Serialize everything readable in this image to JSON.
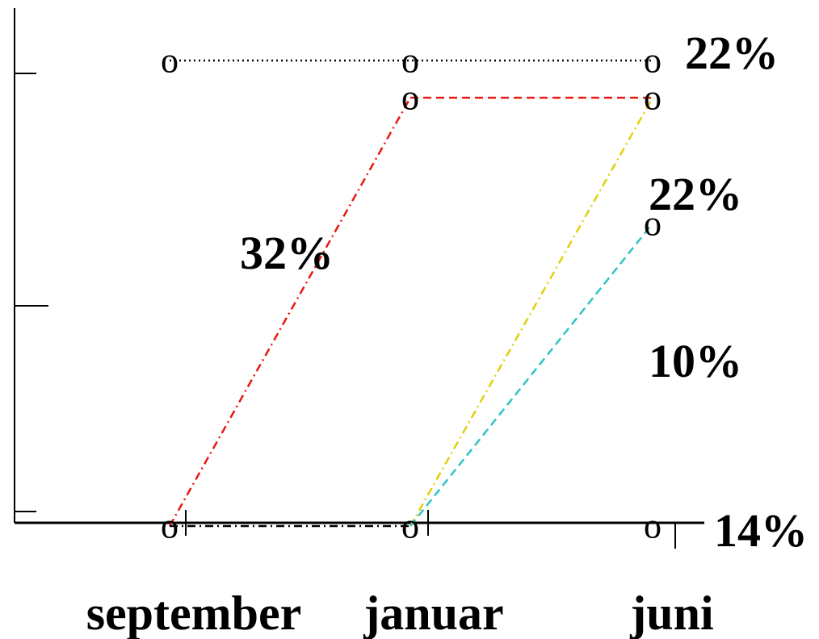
{
  "chart_data": {
    "type": "line",
    "categories": [
      "september",
      "januar",
      "juni"
    ],
    "series": [
      {
        "values": [
          1,
          1,
          1
        ],
        "style": "dotted",
        "color": "#000000"
      },
      {
        "values": [
          null,
          0.92,
          0.92
        ],
        "style": "dashed",
        "color": "#e8170f"
      },
      {
        "values": [
          0,
          0.92,
          null
        ],
        "style": "dashdot",
        "color": "#e8170f"
      },
      {
        "values": [
          null,
          0,
          0.92
        ],
        "style": "dashdot",
        "color": "#e3cf0c"
      },
      {
        "values": [
          null,
          0,
          0.65
        ],
        "style": "dashed",
        "color": "#2ec4c4"
      },
      {
        "values": [
          0,
          0,
          null
        ],
        "style": "dashdot",
        "color": "#000000"
      },
      {
        "values": [
          null,
          null,
          0
        ],
        "style": "none",
        "color": "#000000"
      }
    ],
    "annotations": [
      {
        "text": "22%",
        "near": "juni-top"
      },
      {
        "text": "22%",
        "near": "januar-juni-rise"
      },
      {
        "text": "32%",
        "near": "september-januar-rise"
      },
      {
        "text": "10%",
        "near": "juni-lower"
      },
      {
        "text": "14%",
        "near": "juni-baseline"
      }
    ],
    "marker_symbol": "o",
    "ylim": [
      0,
      1
    ],
    "grid": false,
    "legend": "none"
  }
}
